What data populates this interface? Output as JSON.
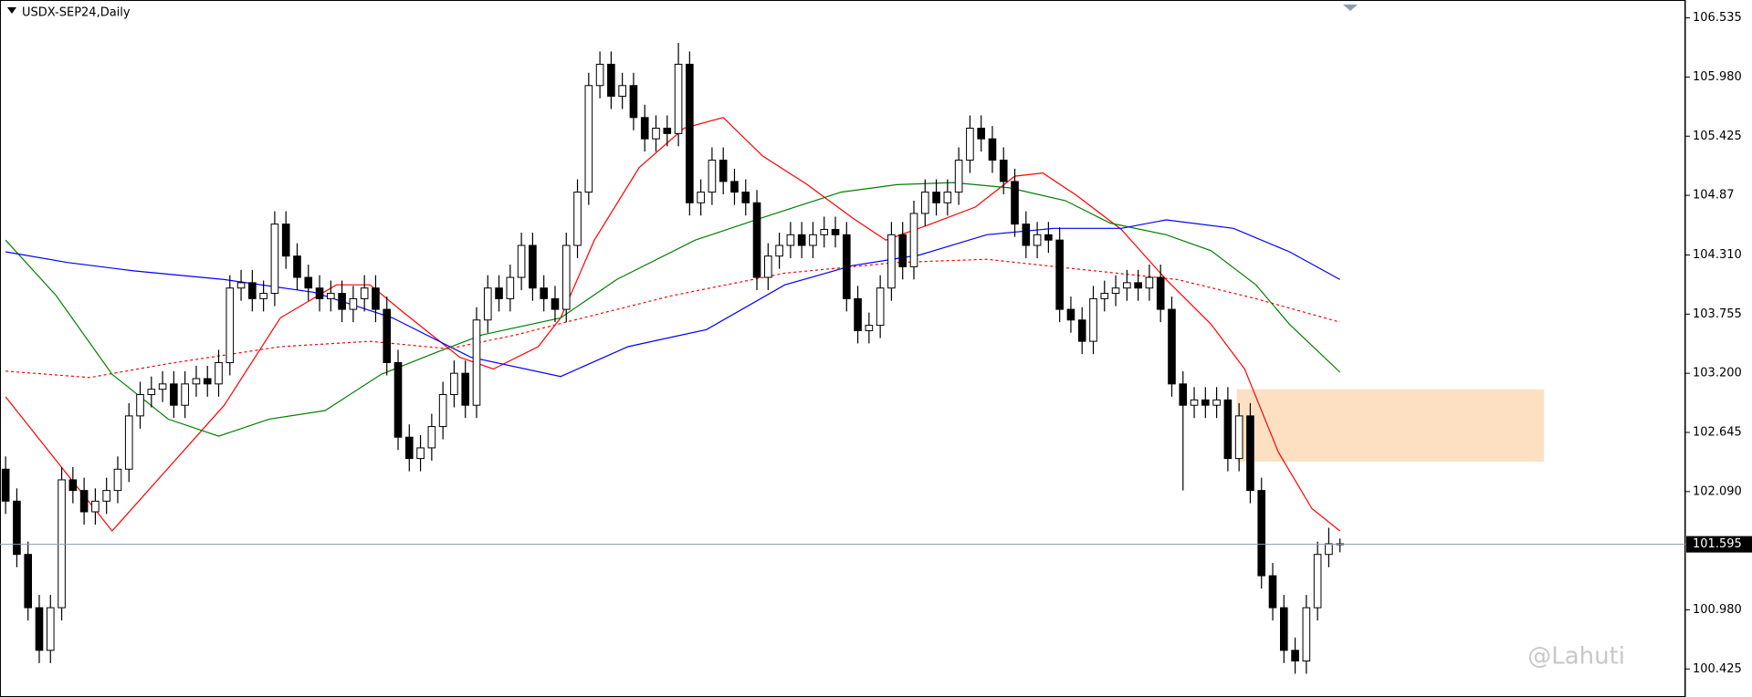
{
  "chart_data": {
    "type": "candlestick",
    "title": "USDX-SEP24,Daily",
    "watermark": "@Lahuti",
    "xlim": [
      -0.5,
      149.8
    ],
    "ylim": [
      100.162,
      106.703
    ],
    "yticks": [
      106.535,
      {
        "value": 105.98,
        "label": "105.980"
      },
      105.425,
      104.87,
      {
        "value": 104.31,
        "label": "104.310"
      },
      103.755,
      {
        "value": 103.2,
        "label": "103.200"
      },
      102.645,
      {
        "value": 102.09,
        "label": "102.090"
      },
      {
        "value": 100.98,
        "label": "100.980"
      },
      100.425
    ],
    "bull_color": "#ffffff",
    "bear_color": "#000000",
    "ohlc": [
      [
        102.3,
        102.42,
        101.88,
        102.0
      ],
      [
        102.0,
        102.12,
        101.38,
        101.5
      ],
      [
        101.5,
        101.62,
        100.88,
        101.0
      ],
      [
        101.0,
        101.12,
        100.48,
        100.6
      ],
      [
        100.6,
        101.12,
        100.48,
        101.0
      ],
      [
        101.0,
        102.32,
        100.88,
        102.2
      ],
      [
        102.2,
        102.32,
        101.98,
        102.1
      ],
      [
        102.1,
        102.22,
        101.78,
        101.9
      ],
      [
        101.9,
        102.12,
        101.78,
        102.0
      ],
      [
        102.0,
        102.22,
        101.88,
        102.1
      ],
      [
        102.1,
        102.42,
        101.98,
        102.3
      ],
      [
        102.3,
        102.92,
        102.18,
        102.8
      ],
      [
        102.8,
        103.12,
        102.68,
        103.0
      ],
      [
        103.0,
        103.17,
        102.88,
        103.05
      ],
      [
        103.05,
        103.22,
        102.93,
        103.1
      ],
      [
        103.1,
        103.22,
        102.78,
        102.9
      ],
      [
        102.9,
        103.22,
        102.78,
        103.1
      ],
      [
        103.1,
        103.27,
        102.98,
        103.15
      ],
      [
        103.15,
        103.27,
        102.98,
        103.1
      ],
      [
        103.1,
        103.42,
        102.98,
        103.3
      ],
      [
        103.3,
        104.12,
        103.18,
        104.0
      ],
      [
        104.0,
        104.17,
        103.88,
        104.05
      ],
      [
        104.05,
        104.17,
        103.78,
        103.9
      ],
      [
        103.9,
        104.07,
        103.78,
        103.95
      ],
      [
        103.95,
        104.72,
        103.83,
        104.6
      ],
      [
        104.6,
        104.72,
        104.18,
        104.3
      ],
      [
        104.3,
        104.42,
        103.98,
        104.1
      ],
      [
        104.1,
        104.22,
        103.88,
        104.0
      ],
      [
        104.0,
        104.12,
        103.78,
        103.9
      ],
      [
        103.9,
        104.07,
        103.78,
        103.95
      ],
      [
        103.95,
        104.07,
        103.68,
        103.8
      ],
      [
        103.8,
        104.02,
        103.68,
        103.9
      ],
      [
        103.9,
        104.12,
        103.78,
        104.0
      ],
      [
        104.0,
        104.12,
        103.68,
        103.8
      ],
      [
        103.8,
        103.92,
        103.18,
        103.3
      ],
      [
        103.3,
        103.42,
        102.48,
        102.6
      ],
      [
        102.6,
        102.72,
        102.28,
        102.4
      ],
      [
        102.4,
        102.62,
        102.28,
        102.5
      ],
      [
        102.5,
        102.82,
        102.38,
        102.7
      ],
      [
        102.7,
        103.12,
        102.58,
        103.0
      ],
      [
        103.0,
        103.32,
        102.88,
        103.2
      ],
      [
        103.2,
        103.32,
        102.78,
        102.9
      ],
      [
        102.9,
        103.82,
        102.78,
        103.7
      ],
      [
        103.7,
        104.12,
        103.58,
        104.0
      ],
      [
        104.0,
        104.12,
        103.78,
        103.9
      ],
      [
        103.9,
        104.22,
        103.78,
        104.1
      ],
      [
        104.1,
        104.52,
        103.98,
        104.4
      ],
      [
        104.4,
        104.52,
        103.88,
        104.0
      ],
      [
        104.0,
        104.12,
        103.78,
        103.9
      ],
      [
        103.9,
        104.02,
        103.68,
        103.8
      ],
      [
        103.8,
        104.52,
        103.68,
        104.4
      ],
      [
        104.4,
        105.02,
        104.28,
        104.9
      ],
      [
        104.9,
        106.02,
        104.78,
        105.9
      ],
      [
        105.9,
        106.22,
        105.78,
        106.1
      ],
      [
        106.1,
        106.22,
        105.68,
        105.8
      ],
      [
        105.8,
        106.02,
        105.68,
        105.9
      ],
      [
        105.9,
        106.02,
        105.48,
        105.6
      ],
      [
        105.6,
        105.72,
        105.28,
        105.4
      ],
      [
        105.4,
        105.62,
        105.28,
        105.5
      ],
      [
        105.5,
        105.62,
        105.33,
        105.45
      ],
      [
        105.45,
        106.3,
        105.33,
        106.1
      ],
      [
        106.1,
        106.22,
        104.68,
        104.8
      ],
      [
        104.8,
        105.02,
        104.68,
        104.9
      ],
      [
        104.9,
        105.32,
        104.78,
        105.2
      ],
      [
        105.2,
        105.32,
        104.88,
        105.0
      ],
      [
        105.0,
        105.12,
        104.78,
        104.9
      ],
      [
        104.9,
        105.02,
        104.68,
        104.8
      ],
      [
        104.8,
        104.92,
        103.98,
        104.1
      ],
      [
        104.1,
        104.42,
        103.98,
        104.3
      ],
      [
        104.3,
        104.52,
        104.18,
        104.4
      ],
      [
        104.4,
        104.62,
        104.28,
        104.5
      ],
      [
        104.5,
        104.62,
        104.28,
        104.4
      ],
      [
        104.4,
        104.62,
        104.28,
        104.5
      ],
      [
        104.5,
        104.67,
        104.38,
        104.55
      ],
      [
        104.55,
        104.67,
        104.38,
        104.5
      ],
      [
        104.5,
        104.62,
        103.78,
        103.9
      ],
      [
        103.9,
        104.02,
        103.48,
        103.6
      ],
      [
        103.6,
        103.77,
        103.48,
        103.65
      ],
      [
        103.65,
        104.12,
        103.53,
        104.0
      ],
      [
        104.0,
        104.62,
        103.88,
        104.5
      ],
      [
        104.5,
        104.62,
        104.08,
        104.2
      ],
      [
        104.2,
        104.82,
        104.08,
        104.7
      ],
      [
        104.7,
        105.02,
        104.58,
        104.9
      ],
      [
        104.9,
        105.02,
        104.68,
        104.8
      ],
      [
        104.8,
        105.02,
        104.68,
        104.9
      ],
      [
        104.9,
        105.32,
        104.78,
        105.2
      ],
      [
        105.2,
        105.62,
        105.08,
        105.5
      ],
      [
        105.5,
        105.62,
        105.28,
        105.4
      ],
      [
        105.4,
        105.52,
        105.08,
        105.2
      ],
      [
        105.2,
        105.32,
        104.88,
        105.0
      ],
      [
        105.0,
        105.12,
        104.48,
        104.6
      ],
      [
        104.6,
        104.72,
        104.28,
        104.4
      ],
      [
        104.4,
        104.62,
        104.28,
        104.5
      ],
      [
        104.5,
        104.62,
        104.33,
        104.45
      ],
      [
        104.45,
        104.57,
        103.68,
        103.8
      ],
      [
        103.8,
        103.92,
        103.58,
        103.7
      ],
      [
        103.7,
        103.82,
        103.38,
        103.5
      ],
      [
        103.5,
        104.02,
        103.38,
        103.9
      ],
      [
        103.9,
        104.07,
        103.78,
        103.95
      ],
      [
        103.95,
        104.12,
        103.83,
        104.0
      ],
      [
        104.0,
        104.17,
        103.88,
        104.05
      ],
      [
        104.05,
        104.17,
        103.88,
        104.0
      ],
      [
        104.0,
        104.22,
        103.88,
        104.1
      ],
      [
        104.1,
        104.22,
        103.68,
        103.8
      ],
      [
        103.8,
        103.92,
        102.98,
        103.1
      ],
      [
        103.1,
        103.22,
        102.1,
        102.9
      ],
      [
        102.9,
        103.07,
        102.78,
        102.95
      ],
      [
        102.95,
        103.07,
        102.78,
        102.9
      ],
      [
        102.9,
        103.07,
        102.78,
        102.95
      ],
      [
        102.95,
        103.07,
        102.28,
        102.4
      ],
      [
        102.4,
        102.92,
        102.28,
        102.8
      ],
      [
        102.8,
        102.92,
        101.98,
        102.1
      ],
      [
        102.1,
        102.22,
        101.18,
        101.3
      ],
      [
        101.3,
        101.42,
        100.88,
        101.0
      ],
      [
        101.0,
        101.12,
        100.48,
        100.6
      ],
      [
        100.6,
        100.72,
        100.38,
        100.5
      ],
      [
        100.5,
        101.12,
        100.38,
        101.0
      ],
      [
        101.0,
        101.62,
        100.88,
        101.5
      ],
      [
        101.5,
        101.75,
        101.38,
        101.6
      ],
      [
        101.6,
        101.65,
        101.52,
        101.595
      ]
    ],
    "lines": [
      {
        "color": "#ff0000",
        "dash": false,
        "x": [
          0,
          9.5,
          19.5,
          24.5,
          29.5,
          32.5,
          35.5,
          40.5,
          43.5,
          47.5,
          49.5,
          52.5,
          56.5,
          60.5,
          64,
          67.5,
          71.5,
          75.5,
          78.5,
          82.5,
          86.5,
          90,
          92.5,
          95.5,
          99.5,
          103.5,
          107.5,
          110.5,
          113.5,
          116.5,
          119
        ],
        "values": [
          102.98,
          101.72,
          102.9,
          103.72,
          104.03,
          104.03,
          103.77,
          103.35,
          103.24,
          103.45,
          103.72,
          104.45,
          105.13,
          105.5,
          105.6,
          105.24,
          104.97,
          104.66,
          104.45,
          104.6,
          104.76,
          105.05,
          105.08,
          104.87,
          104.55,
          104.08,
          103.66,
          103.24,
          102.46,
          101.93,
          101.72
        ]
      },
      {
        "color": "#008000",
        "dash": false,
        "x": [
          0,
          4.5,
          9.5,
          14.5,
          19,
          23.5,
          28.5,
          33.5,
          38.5,
          42.5,
          49.5,
          54.5,
          61.5,
          67.5,
          74.5,
          79.5,
          84.5,
          89.5,
          94.5,
          98.5,
          103.5,
          107.5,
          111.5,
          114.5,
          119
        ],
        "values": [
          104.45,
          103.93,
          103.19,
          102.77,
          102.61,
          102.77,
          102.85,
          103.19,
          103.4,
          103.56,
          103.72,
          104.08,
          104.45,
          104.66,
          104.9,
          104.97,
          104.99,
          104.94,
          104.82,
          104.61,
          104.5,
          104.35,
          104.03,
          103.66,
          103.21
        ]
      },
      {
        "color": "#0000ff",
        "dash": false,
        "x": [
          0,
          5.5,
          11.5,
          19.5,
          27.5,
          34.5,
          41.5,
          49.5,
          55.5,
          62.5,
          69.5,
          75.5,
          81.5,
          87.5,
          93.5,
          99.5,
          103.5,
          109.5,
          114.5,
          119
        ],
        "values": [
          104.34,
          104.24,
          104.16,
          104.08,
          103.96,
          103.72,
          103.35,
          103.17,
          103.45,
          103.61,
          104.03,
          104.21,
          104.31,
          104.5,
          104.56,
          104.56,
          104.64,
          104.56,
          104.34,
          104.08
        ]
      },
      {
        "color": "#ff0000",
        "dash": true,
        "x": [
          0,
          7.5,
          14.5,
          24.5,
          32.5,
          39.5,
          45.5,
          51.5,
          59.5,
          69.5,
          79.5,
          87.5,
          94.5,
          104.5,
          111.5,
          119
        ],
        "values": [
          103.22,
          103.16,
          103.29,
          103.45,
          103.5,
          103.43,
          103.56,
          103.72,
          103.93,
          104.14,
          104.24,
          104.27,
          104.19,
          104.08,
          103.9,
          103.68
        ]
      }
    ],
    "zone": {
      "x": [
        109.8,
        137.2
      ],
      "y": [
        102.37,
        103.05
      ],
      "color": "#fde0c2"
    },
    "current_price": {
      "value": 101.595,
      "color": "#8c9bb0"
    }
  }
}
